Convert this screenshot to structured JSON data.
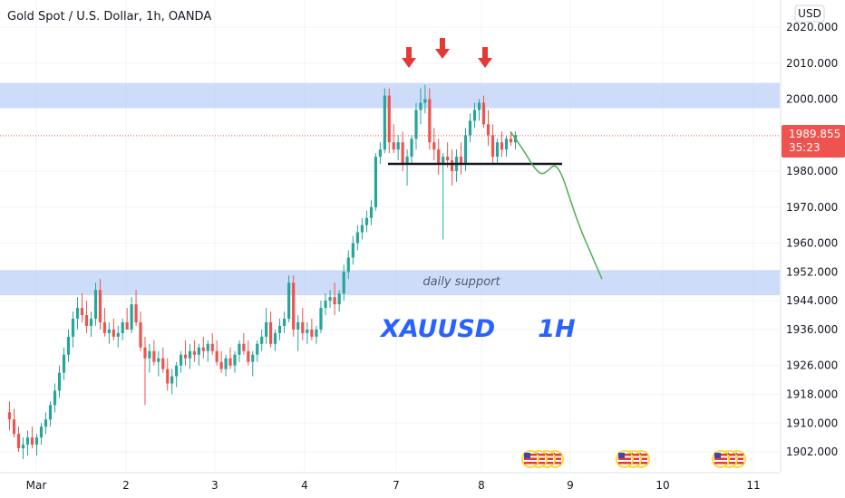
{
  "header": {
    "title": "Gold Spot / U.S. Dollar, 1h, OANDA",
    "currency_button": "USD"
  },
  "chart_data": {
    "type": "candlestick",
    "title": "Gold Spot / U.S. Dollar, 1h, OANDA",
    "ylim": [
      1897,
      2023
    ],
    "y_ticks": [
      {
        "value": 2020,
        "label": "2020.000"
      },
      {
        "value": 2010,
        "label": "2010.000"
      },
      {
        "value": 2000,
        "label": "2000.000"
      },
      {
        "value": 1980,
        "label": "1980.000"
      },
      {
        "value": 1970,
        "label": "1970.000"
      },
      {
        "value": 1960,
        "label": "1960.000"
      },
      {
        "value": 1952,
        "label": "1952.000"
      },
      {
        "value": 1944,
        "label": "1944.000"
      },
      {
        "value": 1936,
        "label": "1936.000"
      },
      {
        "value": 1926,
        "label": "1926.000"
      },
      {
        "value": 1918,
        "label": "1918.000"
      },
      {
        "value": 1910,
        "label": "1910.000"
      },
      {
        "value": 1902,
        "label": "1902.000"
      }
    ],
    "x_ticks": [
      {
        "label": "Mar",
        "day": 1
      },
      {
        "label": "2",
        "day": 2
      },
      {
        "label": "3",
        "day": 3
      },
      {
        "label": "4",
        "day": 4
      },
      {
        "label": "7",
        "day": 5
      },
      {
        "label": "8",
        "day": 6
      },
      {
        "label": "9",
        "day": 7
      },
      {
        "label": "10",
        "day": 8
      },
      {
        "label": "11",
        "day": 9
      }
    ],
    "colors": {
      "up": "#26a69a",
      "down": "#ef5350",
      "zone": "#bcd0f7",
      "arrow": "#e53935",
      "projection": "#4caf50",
      "text_blue": "#2962ff",
      "last_price": "#ef5350"
    },
    "last_price": {
      "value": 1989.855,
      "label": "1989.855",
      "countdown": "35:23"
    },
    "zones": [
      {
        "low": 1997.5,
        "high": 2004.5,
        "label": ""
      },
      {
        "low": 1945.5,
        "high": 1952.5,
        "label": "daily support"
      }
    ],
    "neckline": {
      "value": 1982
    },
    "chart_label": "XAUUSD     1H",
    "candles_daily": [
      {
        "day": "Mar",
        "ohlc": [
          [
            1913,
            1916,
            1908,
            1911
          ],
          [
            1911,
            1914,
            1906,
            1907
          ],
          [
            1907,
            1909,
            1902,
            1903
          ],
          [
            1903,
            1906,
            1900,
            1904
          ],
          [
            1904,
            1908,
            1901,
            1906
          ],
          [
            1906,
            1909,
            1903,
            1904
          ],
          [
            1904,
            1907,
            1901,
            1906
          ],
          [
            1906,
            1910,
            1904,
            1909
          ],
          [
            1909,
            1913,
            1907,
            1911
          ],
          [
            1911,
            1916,
            1909,
            1915
          ],
          [
            1915,
            1921,
            1913,
            1919
          ],
          [
            1919,
            1926,
            1917,
            1924
          ],
          [
            1924,
            1931,
            1922,
            1929
          ],
          [
            1929,
            1936,
            1927,
            1934
          ],
          [
            1934,
            1941,
            1931,
            1939
          ],
          [
            1939,
            1945,
            1936,
            1942
          ],
          [
            1942,
            1946,
            1938,
            1940
          ],
          [
            1940,
            1944,
            1935,
            1937
          ],
          [
            1937,
            1941,
            1934,
            1939
          ],
          [
            1939,
            1949,
            1937,
            1947
          ]
        ]
      },
      {
        "day": "2",
        "ohlc": [
          [
            1947,
            1950,
            1936,
            1938
          ],
          [
            1938,
            1942,
            1934,
            1935
          ],
          [
            1935,
            1938,
            1932,
            1936
          ],
          [
            1936,
            1939,
            1933,
            1934
          ],
          [
            1934,
            1937,
            1931,
            1935
          ],
          [
            1935,
            1939,
            1933,
            1938
          ],
          [
            1938,
            1942,
            1936,
            1936
          ],
          [
            1936,
            1945,
            1935,
            1943
          ],
          [
            1943,
            1947,
            1937,
            1938
          ],
          [
            1938,
            1941,
            1930,
            1931
          ],
          [
            1931,
            1934,
            1915,
            1928
          ],
          [
            1928,
            1932,
            1924,
            1930
          ],
          [
            1930,
            1933,
            1926,
            1927
          ],
          [
            1927,
            1930,
            1923,
            1928
          ],
          [
            1928,
            1931,
            1924,
            1925
          ],
          [
            1925,
            1928,
            1919,
            1921
          ],
          [
            1921,
            1925,
            1918,
            1923
          ],
          [
            1923,
            1927,
            1920,
            1926
          ],
          [
            1926,
            1930,
            1924,
            1929
          ],
          [
            1929,
            1933,
            1926,
            1928
          ]
        ]
      },
      {
        "day": "3",
        "ohlc": [
          [
            1928,
            1932,
            1925,
            1930
          ],
          [
            1930,
            1933,
            1927,
            1929
          ],
          [
            1929,
            1932,
            1926,
            1931
          ],
          [
            1931,
            1934,
            1928,
            1930
          ],
          [
            1930,
            1933,
            1927,
            1932
          ],
          [
            1932,
            1935,
            1929,
            1930
          ],
          [
            1930,
            1933,
            1926,
            1927
          ],
          [
            1927,
            1930,
            1924,
            1925
          ],
          [
            1925,
            1929,
            1923,
            1928
          ],
          [
            1928,
            1931,
            1925,
            1926
          ],
          [
            1926,
            1930,
            1924,
            1929
          ],
          [
            1929,
            1933,
            1927,
            1932
          ],
          [
            1932,
            1935,
            1929,
            1930
          ],
          [
            1930,
            1933,
            1926,
            1927
          ],
          [
            1927,
            1930,
            1923,
            1929
          ],
          [
            1929,
            1933,
            1927,
            1932
          ],
          [
            1932,
            1936,
            1930,
            1934
          ],
          [
            1934,
            1942,
            1932,
            1938
          ],
          [
            1938,
            1941,
            1931,
            1932
          ],
          [
            1932,
            1936,
            1930,
            1935
          ]
        ]
      },
      {
        "day": "4",
        "ohlc": [
          [
            1935,
            1939,
            1933,
            1937
          ],
          [
            1937,
            1941,
            1935,
            1939
          ],
          [
            1939,
            1951,
            1938,
            1949
          ],
          [
            1949,
            1951,
            1934,
            1936
          ],
          [
            1936,
            1940,
            1930,
            1938
          ],
          [
            1938,
            1942,
            1933,
            1935
          ],
          [
            1935,
            1938,
            1932,
            1936
          ],
          [
            1936,
            1939,
            1933,
            1934
          ],
          [
            1934,
            1937,
            1932,
            1936
          ],
          [
            1936,
            1944,
            1935,
            1942
          ],
          [
            1942,
            1946,
            1940,
            1944
          ],
          [
            1944,
            1947,
            1942,
            1945
          ],
          [
            1945,
            1949,
            1940,
            1943
          ],
          [
            1943,
            1947,
            1941,
            1946
          ],
          [
            1946,
            1954,
            1944,
            1952
          ],
          [
            1952,
            1958,
            1950,
            1956
          ],
          [
            1956,
            1962,
            1954,
            1960
          ],
          [
            1960,
            1965,
            1958,
            1963
          ],
          [
            1963,
            1967,
            1961,
            1965
          ],
          [
            1965,
            1969,
            1963,
            1967
          ]
        ]
      },
      {
        "day": "7",
        "ohlc": [
          [
            1967,
            1972,
            1965,
            1970
          ],
          [
            1970,
            1985,
            1969,
            1984
          ],
          [
            1984,
            1988,
            1982,
            1986
          ],
          [
            1986,
            2003,
            1985,
            2001
          ],
          [
            2001,
            2003,
            1985,
            1988
          ],
          [
            1988,
            1993,
            1985,
            1986
          ],
          [
            1986,
            1990,
            1983,
            1988
          ],
          [
            1988,
            1991,
            1980,
            1982
          ],
          [
            1982,
            1986,
            1976,
            1984
          ],
          [
            1984,
            1990,
            1982,
            1989
          ],
          [
            1989,
            1999,
            1986,
            1997
          ],
          [
            1997,
            2003,
            1993,
            1999
          ],
          [
            1999,
            2004,
            1996,
            2000
          ],
          [
            2000,
            2003,
            1986,
            1988
          ],
          [
            1988,
            1992,
            1983,
            1986
          ],
          [
            1986,
            1989,
            1979,
            1982
          ],
          [
            1982,
            1985,
            1961,
            1984
          ],
          [
            1984,
            1988,
            1981,
            1983
          ],
          [
            1983,
            1986,
            1976,
            1980
          ],
          [
            1980,
            1986,
            1977,
            1984
          ]
        ]
      },
      {
        "day": "8",
        "ohlc": [
          [
            1984,
            1988,
            1979,
            1982
          ],
          [
            1982,
            1992,
            1980,
            1990
          ],
          [
            1990,
            1996,
            1988,
            1994
          ],
          [
            1994,
            1999,
            1992,
            1997
          ],
          [
            1997,
            2000,
            1994,
            1999
          ],
          [
            1999,
            2001,
            1992,
            1993
          ],
          [
            1993,
            1997,
            1987,
            1990
          ],
          [
            1990,
            1993,
            1982,
            1984
          ],
          [
            1984,
            1989,
            1982,
            1988
          ],
          [
            1988,
            1991,
            1984,
            1986
          ],
          [
            1986,
            1990,
            1984,
            1989
          ],
          [
            1989,
            1991,
            1987,
            1988
          ],
          [
            1988,
            1991,
            1986,
            1990
          ]
        ]
      }
    ],
    "projection": [
      [
        0,
        1991
      ],
      [
        14,
        1986
      ],
      [
        26,
        1981
      ],
      [
        34,
        1979
      ],
      [
        41,
        1980
      ],
      [
        49,
        1982
      ],
      [
        57,
        1979
      ],
      [
        66,
        1972
      ],
      [
        77,
        1964
      ],
      [
        89,
        1957
      ],
      [
        101,
        1950
      ]
    ],
    "arrows": [
      {
        "day_index": 4,
        "candle": 2
      },
      {
        "day_index": 4,
        "candle": 12
      },
      {
        "day_index": 5,
        "candle": 4
      }
    ],
    "event_markers": [
      {
        "day": "8",
        "count": 4,
        "offset": 12
      },
      {
        "day": "9",
        "count": 3,
        "offset": 15
      },
      {
        "day": "10",
        "count": 3,
        "offset": 16
      }
    ]
  }
}
